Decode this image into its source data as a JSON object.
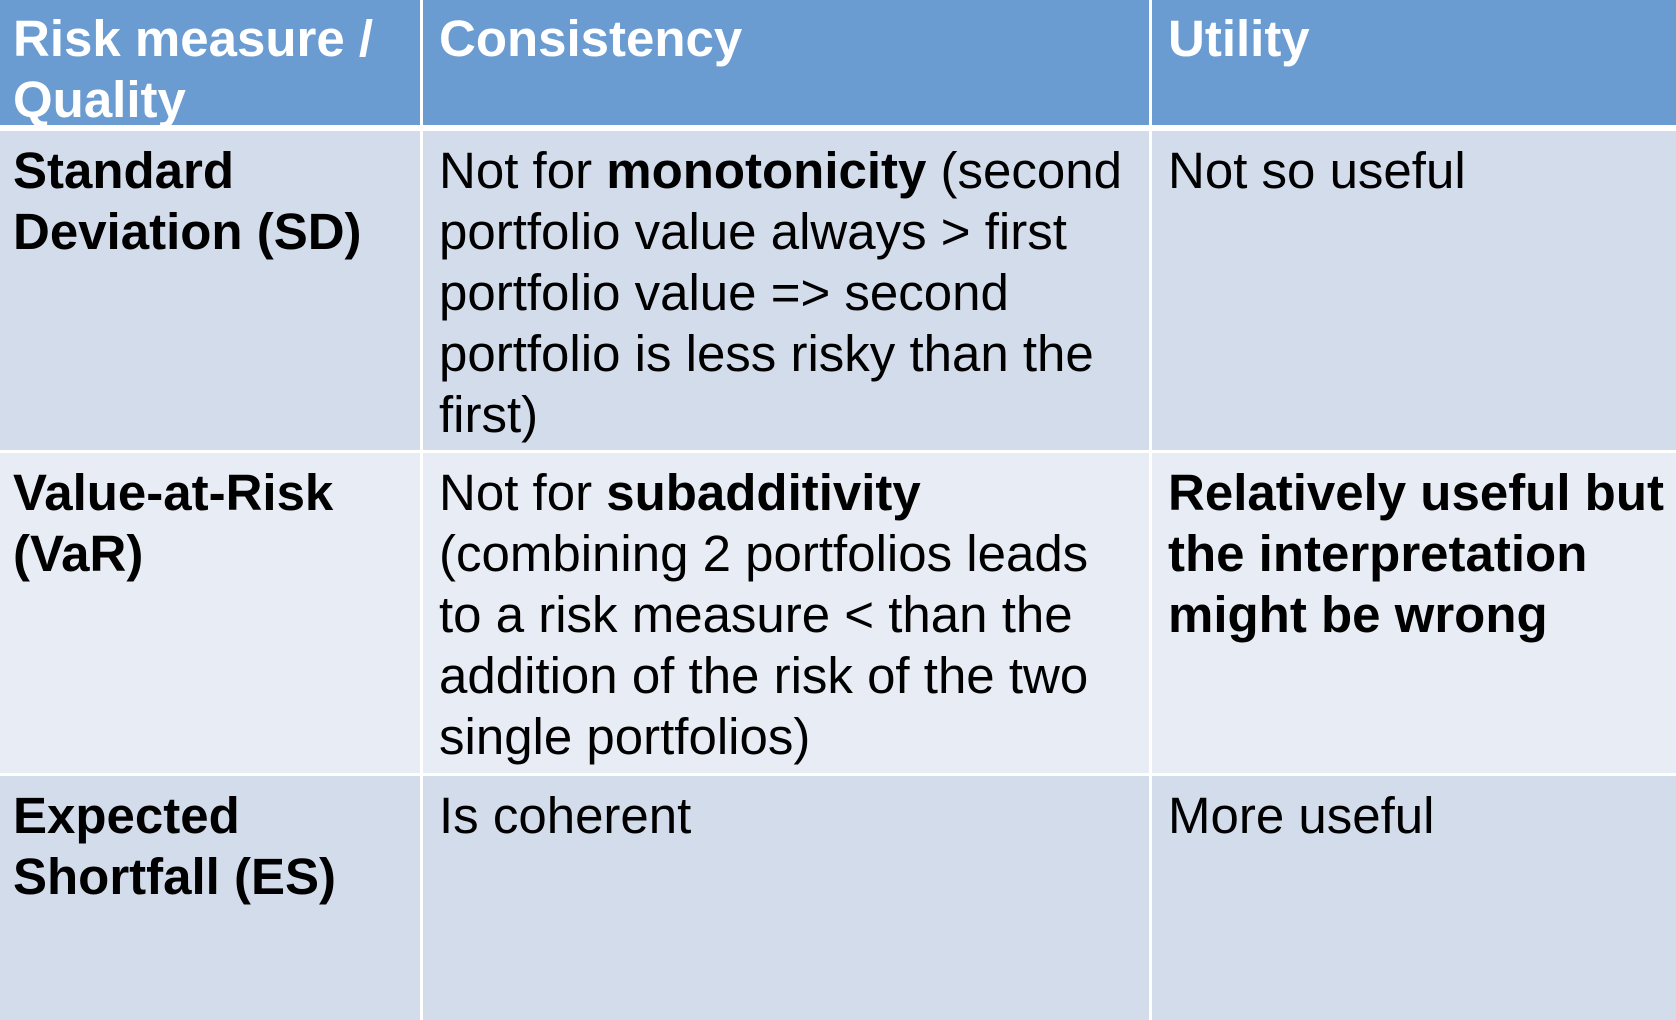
{
  "table": {
    "headers": [
      "Risk measure / Quality",
      "Consistency",
      "Utility"
    ],
    "rows": [
      {
        "measure": "Standard Deviation (SD)",
        "consistency_prefix": "Not for ",
        "consistency_bold": "monotonicity",
        "consistency_suffix": " (second portfolio value always > first portfolio value => second portfolio is less risky than the first)",
        "utility": "Not so useful"
      },
      {
        "measure": "Value-at-Risk (VaR)",
        "consistency_prefix": "Not for ",
        "consistency_bold": "subadditivity",
        "consistency_suffix": " (combining 2 portfolios leads to a risk measure < than the addition of the risk of the two single portfolios)",
        "utility": "Relatively useful but the interpretation might be wrong"
      },
      {
        "measure": "Expected Shortfall (ES)",
        "consistency": "Is coherent",
        "utility": "More useful"
      }
    ]
  },
  "colors": {
    "header_bg": "#6a9bd1",
    "row_dark_bg": "#d3dcea",
    "row_light_bg": "#e8ecf4",
    "header_text": "#ffffff",
    "body_text": "#000000"
  }
}
